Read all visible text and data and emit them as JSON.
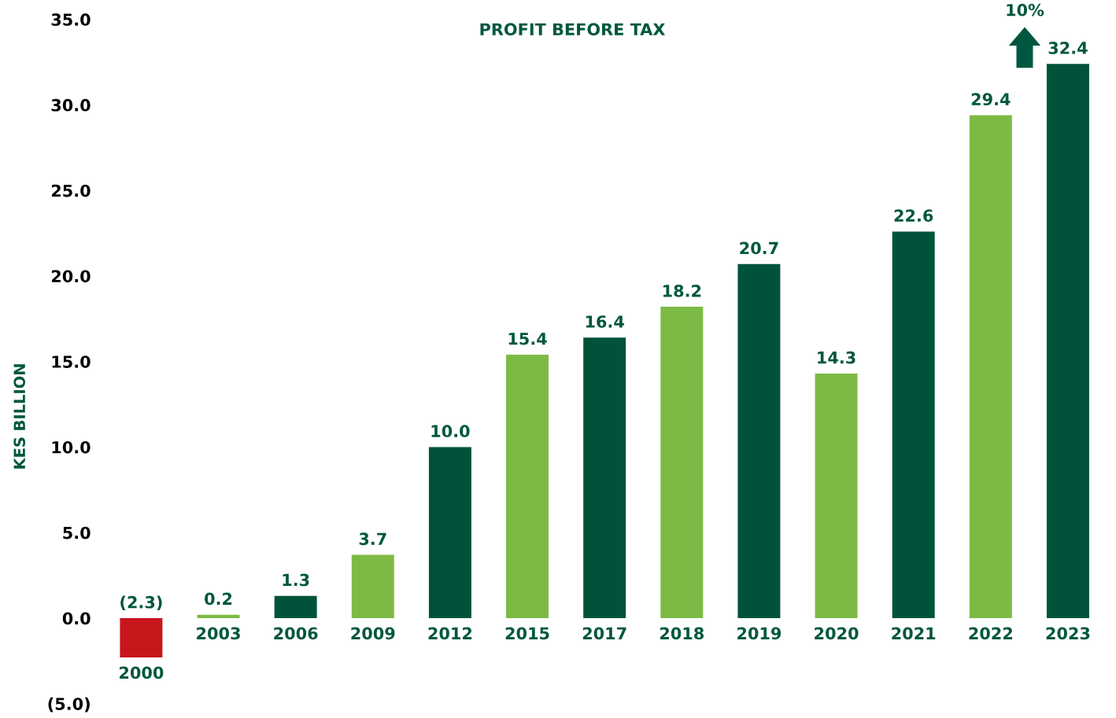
{
  "chart_data": {
    "type": "bar",
    "title": "PROFIT BEFORE TAX",
    "ylabel": "KES BILLION",
    "categories": [
      "2000",
      "2003",
      "2006",
      "2009",
      "2012",
      "2015",
      "2017",
      "2018",
      "2019",
      "2020",
      "2021",
      "2022",
      "2023"
    ],
    "values": [
      -2.3,
      0.2,
      1.3,
      3.7,
      10.0,
      15.4,
      16.4,
      18.2,
      20.7,
      14.3,
      22.6,
      29.4,
      32.4
    ],
    "colors": [
      "#c8161d",
      "#7dba45",
      "#00533a",
      "#7dba45",
      "#00533a",
      "#7dba45",
      "#00533a",
      "#7dba45",
      "#00533a",
      "#7dba45",
      "#00533a",
      "#7dba45",
      "#00533a"
    ],
    "value_labels": [
      "(2.3)",
      "0.2",
      "1.3",
      "3.7",
      "10.0",
      "15.4",
      "16.4",
      "18.2",
      "20.7",
      "14.3",
      "22.6",
      "29.4",
      "32.4"
    ],
    "ylim": [
      -5,
      35
    ],
    "yticks": [
      {
        "value": -5,
        "label": "(5.0)"
      },
      {
        "value": 0,
        "label": "0.0"
      },
      {
        "value": 5,
        "label": "5.0"
      },
      {
        "value": 10,
        "label": "10.0"
      },
      {
        "value": 15,
        "label": "15.0"
      },
      {
        "value": 20,
        "label": "20.0"
      },
      {
        "value": 25,
        "label": "25.0"
      },
      {
        "value": 30,
        "label": "30.0"
      },
      {
        "value": 35,
        "label": "35.0"
      }
    ],
    "annotations": [
      "10%"
    ],
    "grid": false
  }
}
